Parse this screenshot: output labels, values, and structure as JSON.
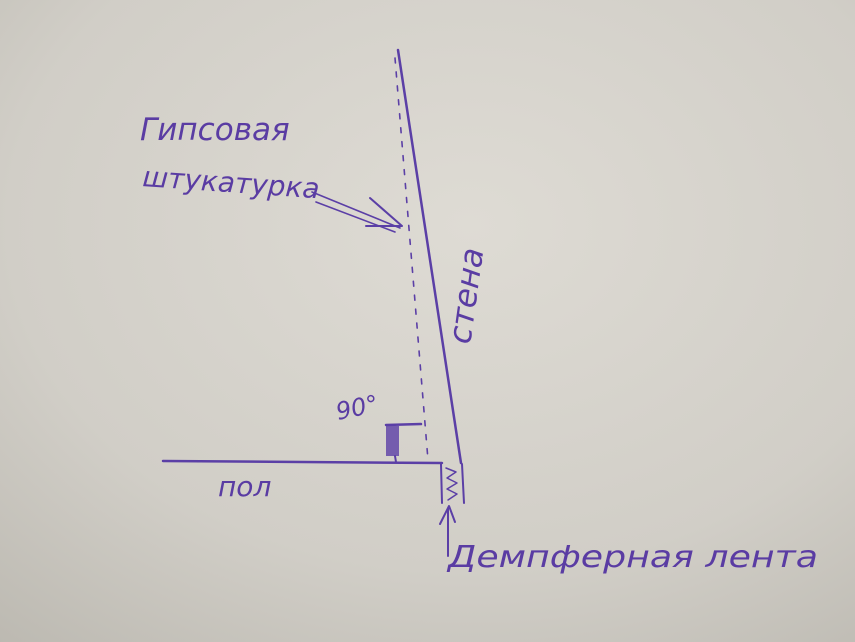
{
  "labels": {
    "plaster": [
      "Гипсовая",
      "штукатурка"
    ],
    "wall": "стена",
    "angle": "90°",
    "floor": "пол",
    "damper_tape": "Демпферная лента"
  },
  "colors": {
    "ink": "#5b3fa6",
    "paper": "#d3d0c9"
  }
}
